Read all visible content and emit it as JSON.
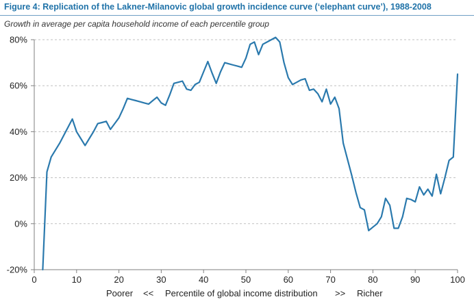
{
  "header": {
    "title": "Figure 4:  Replication of the Lakner-Milanovic global growth incidence curve (‘elephant curve’), 1988-2008",
    "subtitle": "Growth in average per capita household income of each percentile group"
  },
  "colors": {
    "title": "#1f72a8",
    "line": "#2a79ad",
    "grid": "#bfbfbf",
    "axis": "#7f7f7f"
  },
  "chart_data": {
    "type": "line",
    "title": "Figure 4:  Replication of the Lakner-Milanovic global growth incidence curve (‘elephant curve’), 1988-2008",
    "subtitle": "Growth in average per capita household income of each percentile group",
    "xlabel": "Poorer     <<     Percentile of global income distribution     >>     Richer",
    "xlabel_parts": {
      "left": "Poorer",
      "left_arrows": "<<",
      "middle": "Percentile of global income distribution",
      "right_arrows": ">>",
      "right": "Richer"
    },
    "ylabel": "",
    "xlim": [
      0,
      100
    ],
    "ylim": [
      -20,
      80
    ],
    "x_ticks": [
      0,
      10,
      20,
      30,
      40,
      50,
      60,
      70,
      80,
      90,
      100
    ],
    "y_ticks": [
      -20,
      0,
      20,
      40,
      60,
      80
    ],
    "y_tick_labels": [
      "-20%",
      "0%",
      "20%",
      "40%",
      "60%",
      "80%"
    ],
    "grid": "horizontal dashed",
    "legend": "none",
    "series": [
      {
        "x": [
          2,
          3,
          4,
          5,
          6,
          7,
          8,
          9,
          10,
          11,
          12,
          13,
          14,
          15,
          16,
          17,
          18,
          19,
          20,
          21,
          22,
          23,
          24,
          25,
          26,
          27,
          28,
          29,
          30,
          31,
          32,
          33,
          34,
          35,
          36,
          37,
          38,
          39,
          40,
          41,
          42,
          43,
          44,
          45,
          46,
          47,
          48,
          49,
          50,
          51,
          52,
          53,
          54,
          55,
          56,
          57,
          58,
          59,
          60,
          61,
          62,
          63,
          64,
          65,
          66,
          67,
          68,
          69,
          70,
          71,
          72,
          73,
          74,
          75,
          76,
          77,
          78,
          79,
          80,
          81,
          82,
          83,
          84,
          85,
          86,
          87,
          88,
          89,
          90,
          91,
          92,
          93,
          94,
          95,
          96,
          97,
          98,
          99,
          100
        ],
        "y": [
          -20,
          22.5,
          29,
          32,
          35,
          38.5,
          42,
          45.5,
          40,
          37,
          34,
          37,
          40,
          43.5,
          44,
          44.5,
          41,
          43.5,
          46,
          50,
          54.5,
          54,
          53.5,
          53,
          52.5,
          52,
          53.5,
          55,
          52.5,
          51.5,
          56,
          61,
          61.5,
          62,
          58.5,
          58,
          60.5,
          61.5,
          66,
          70.5,
          65.5,
          61,
          66,
          70,
          69.5,
          69,
          68.5,
          68,
          72,
          78,
          79,
          73.5,
          78,
          79,
          80,
          81,
          79,
          70,
          63.5,
          60.5,
          61.5,
          62.5,
          63,
          58,
          58.5,
          56.5,
          53,
          58.5,
          52,
          55,
          50,
          35,
          28,
          21,
          13.5,
          7,
          6,
          -3,
          -1.5,
          0,
          3,
          11,
          8,
          -2,
          -2,
          3,
          11,
          10.5,
          9.5,
          16,
          12.5,
          15,
          12,
          21.5,
          13,
          20,
          27.5,
          29,
          65
        ]
      }
    ]
  }
}
